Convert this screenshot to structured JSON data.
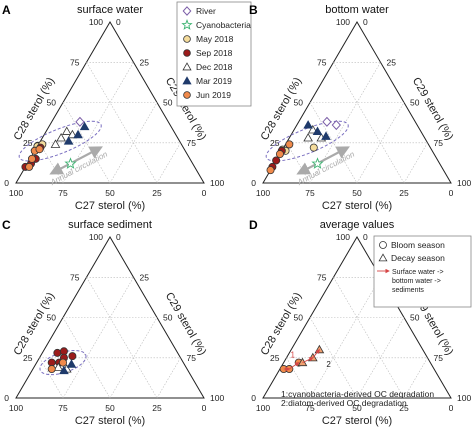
{
  "chart_data": [
    {
      "type": "scatter",
      "panel_label": "A",
      "title": "surface water",
      "axes": {
        "bottom_label": "C27 sterol (%)",
        "left_label": "C28 sterol (%)",
        "right_label": "C29 sterol (%)",
        "ticks": [
          "100",
          "75",
          "50",
          "25",
          "0"
        ]
      },
      "legend": {
        "placement": "top-right",
        "entries": [
          {
            "name": "River",
            "marker": "diamond",
            "fill": "#ffffff",
            "stroke": "#7b5ea7"
          },
          {
            "name": "Cyanobacteria",
            "marker": "star",
            "fill": "#ffffff",
            "stroke": "#3cb371"
          },
          {
            "name": "May 2018",
            "marker": "circle",
            "fill": "#f5dc9c",
            "stroke": "#333333"
          },
          {
            "name": "Sep 2018",
            "marker": "circle",
            "fill": "#9b1b1b",
            "stroke": "#333333"
          },
          {
            "name": "Dec 2018",
            "marker": "triangle",
            "fill": "#ffffff",
            "stroke": "#333333"
          },
          {
            "name": "Mar 2019",
            "marker": "triangle",
            "fill": "#1f3a6b",
            "stroke": "#1f3a6b"
          },
          {
            "name": "Jun 2019",
            "marker": "circle",
            "fill": "#f08a4b",
            "stroke": "#333333"
          }
        ]
      },
      "annotation": "Annual circulation",
      "series": [
        {
          "name": "River",
          "points": [
            [
              47,
              38,
              15
            ]
          ]
        },
        {
          "name": "Cyanobacteria",
          "points": [
            [
              65,
              12,
              23
            ]
          ]
        },
        {
          "name": "May 2018",
          "points": [
            [
              83,
              25,
              0
            ],
            [
              78,
              23,
              0
            ],
            [
              74,
              24,
              2
            ]
          ]
        },
        {
          "name": "Sep 2018",
          "points": [
            [
              90,
              10,
              0
            ],
            [
              86,
              12,
              2
            ],
            [
              82,
              15,
              3
            ],
            [
              80,
              20,
              0
            ],
            [
              76,
              22,
              2
            ]
          ]
        },
        {
          "name": "Dec 2018",
          "points": [
            [
              62,
              28,
              10
            ],
            [
              57,
              32,
              11
            ],
            [
              55,
              30,
              15
            ],
            [
              67,
              24,
              9
            ]
          ]
        },
        {
          "name": "Mar 2019",
          "points": [
            [
              59,
              26,
              15
            ],
            [
              52,
              30,
              18
            ],
            [
              46,
              35,
              19
            ]
          ]
        },
        {
          "name": "Jun 2019",
          "points": [
            [
              88,
              10,
              2
            ],
            [
              84,
              15,
              1
            ],
            [
              80,
              20,
              0
            ],
            [
              77,
              21,
              2
            ]
          ]
        }
      ]
    },
    {
      "type": "scatter",
      "panel_label": "B",
      "title": "bottom water",
      "axes": {
        "bottom_label": "C27 sterol (%)",
        "left_label": "C28 sterol (%)",
        "right_label": "C29 sterol (%)",
        "ticks": [
          "100",
          "75",
          "50",
          "25",
          "0"
        ]
      },
      "annotation": "Annual circulation",
      "series": [
        {
          "name": "River",
          "points": [
            [
              47,
              38,
              15
            ],
            [
              43,
              36,
              21
            ]
          ]
        },
        {
          "name": "Cyanobacteria",
          "points": [
            [
              65,
              12,
              23
            ]
          ]
        },
        {
          "name": "May 2018",
          "points": [
            [
              84,
              22,
              0
            ],
            [
              78,
              20,
              2
            ],
            [
              62,
              22,
              16
            ]
          ]
        },
        {
          "name": "Sep 2018",
          "points": [
            [
              90,
              10,
              0
            ],
            [
              86,
              14,
              0
            ],
            [
              80,
              20,
              0
            ]
          ]
        },
        {
          "name": "Dec 2018",
          "points": [
            [
              62,
              28,
              10
            ],
            [
              57,
              33,
              10
            ],
            [
              55,
              28,
              17
            ]
          ]
        },
        {
          "name": "Mar 2019",
          "points": [
            [
              58,
              36,
              6
            ],
            [
              55,
              32,
              13
            ],
            [
              52,
              29,
              19
            ]
          ]
        },
        {
          "name": "Jun 2019",
          "points": [
            [
              92,
              8,
              0
            ],
            [
              82,
              18,
              0
            ],
            [
              74,
              24,
              2
            ]
          ]
        }
      ]
    },
    {
      "type": "scatter",
      "panel_label": "C",
      "title": "surface sediment",
      "axes": {
        "bottom_label": "C27 sterol (%)",
        "left_label": "C28 sterol (%)",
        "right_label": "C29 sterol (%)",
        "ticks": [
          "100",
          "75",
          "50",
          "25",
          "0"
        ]
      },
      "series": [
        {
          "name": "Sep 2018",
          "points": [
            [
              70,
              22,
              8
            ],
            [
              64,
              28,
              8
            ],
            [
              60,
              29,
              11
            ],
            [
              57,
              26,
              17
            ],
            [
              62,
              25,
              13
            ],
            [
              66,
              22,
              12
            ]
          ]
        },
        {
          "name": "Dec 2018",
          "points": [
            [
              68,
              19,
              13
            ],
            [
              64,
              18,
              18
            ]
          ]
        },
        {
          "name": "Mar 2019",
          "points": [
            [
              66,
              17,
              17
            ],
            [
              60,
              21,
              19
            ]
          ]
        },
        {
          "name": "Jun 2019",
          "points": [
            [
              72,
              18,
              10
            ],
            [
              64,
              22,
              14
            ]
          ]
        }
      ]
    },
    {
      "type": "scatter",
      "panel_label": "D",
      "title": "average values",
      "axes": {
        "bottom_label": "C27 sterol (%)",
        "left_label": "C28 sterol (%)",
        "right_label": "C29 sterol (%)",
        "ticks": [
          "100",
          "75",
          "50",
          "25",
          "0"
        ]
      },
      "legend": {
        "entries": [
          {
            "name": "Bloom season",
            "marker": "circle"
          },
          {
            "name": "Decay season",
            "marker": "triangle"
          },
          {
            "name": "Surface water -> bottom water -> sediments",
            "marker": "arrow"
          }
        ]
      },
      "path_labels": [
        "1",
        "2"
      ],
      "notes": [
        "1:cyanobacteria-derived OC degradation",
        "2:diatom-derived OC degradation"
      ],
      "series": [
        {
          "name": "Bloom season",
          "points": [
            [
              80,
              18,
              2
            ],
            [
              77,
              18,
              5
            ],
            [
              70,
              22,
              8
            ]
          ]
        },
        {
          "name": "Decay season",
          "points": [
            [
              68,
              22,
              10
            ],
            [
              61,
              25,
              14
            ],
            [
              55,
              30,
              15
            ]
          ]
        }
      ]
    }
  ]
}
